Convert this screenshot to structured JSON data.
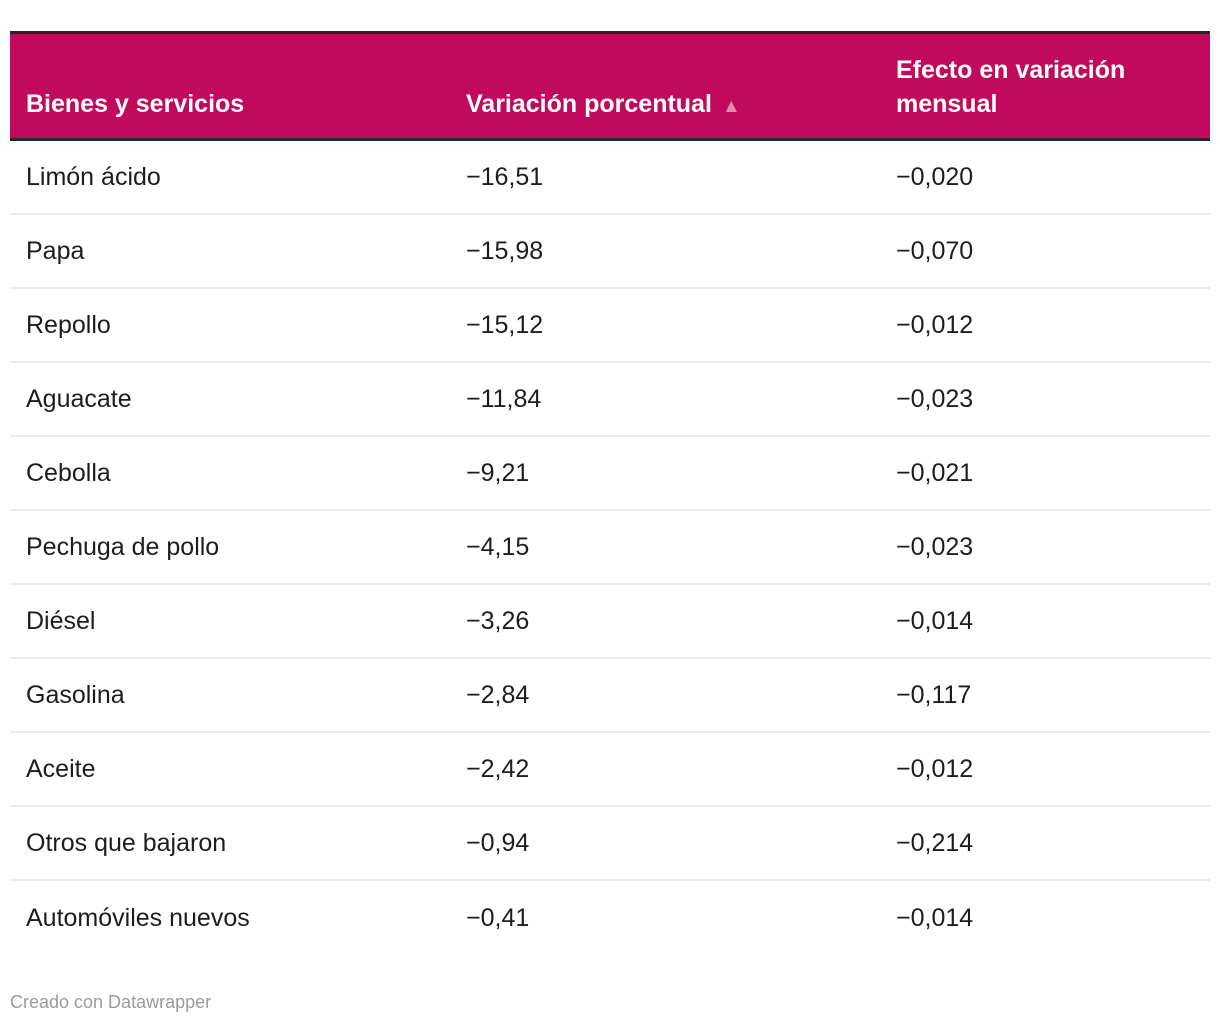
{
  "table": {
    "columns": [
      {
        "label": "Bienes y servicios"
      },
      {
        "label": "Variación porcentual",
        "sort_icon": "▲",
        "sort_direction": "ascending"
      },
      {
        "label": "Efecto en variación mensual"
      }
    ],
    "rows": [
      {
        "name": "Limón ácido",
        "variacion": "−16,51",
        "efecto": "−0,020"
      },
      {
        "name": "Papa",
        "variacion": "−15,98",
        "efecto": "−0,070"
      },
      {
        "name": "Repollo",
        "variacion": "−15,12",
        "efecto": "−0,012"
      },
      {
        "name": "Aguacate",
        "variacion": "−11,84",
        "efecto": "−0,023"
      },
      {
        "name": "Cebolla",
        "variacion": "−9,21",
        "efecto": "−0,021"
      },
      {
        "name": "Pechuga de pollo",
        "variacion": "−4,15",
        "efecto": "−0,023"
      },
      {
        "name": "Diésel",
        "variacion": "−3,26",
        "efecto": "−0,014"
      },
      {
        "name": "Gasolina",
        "variacion": "−2,84",
        "efecto": "−0,117"
      },
      {
        "name": "Aceite",
        "variacion": "−2,42",
        "efecto": "−0,012"
      },
      {
        "name": "Otros que bajaron",
        "variacion": "−0,94",
        "efecto": "−0,214"
      },
      {
        "name": "Automóviles nuevos",
        "variacion": "−0,41",
        "efecto": "−0,014"
      }
    ]
  },
  "footer": {
    "attribution": "Creado con Datawrapper"
  },
  "colors": {
    "header_bg": "#C10A5E",
    "header_border": "#262626",
    "header_text": "#FFFFFF",
    "sort_arrow": "#DC8AAE",
    "row_text": "#1D1D1D",
    "row_divider": "#EBEBEB",
    "footer_text": "#9B9B9B"
  },
  "chart_data": {
    "type": "table",
    "title": "",
    "columns": [
      "Bienes y servicios",
      "Variación porcentual",
      "Efecto en variación mensual"
    ],
    "rows": [
      [
        "Limón ácido",
        -16.51,
        -0.02
      ],
      [
        "Papa",
        -15.98,
        -0.07
      ],
      [
        "Repollo",
        -15.12,
        -0.012
      ],
      [
        "Aguacate",
        -11.84,
        -0.023
      ],
      [
        "Cebolla",
        -9.21,
        -0.021
      ],
      [
        "Pechuga de pollo",
        -4.15,
        -0.023
      ],
      [
        "Diésel",
        -3.26,
        -0.014
      ],
      [
        "Gasolina",
        -2.84,
        -0.117
      ],
      [
        "Aceite",
        -2.42,
        -0.012
      ],
      [
        "Otros que bajaron",
        -0.94,
        -0.214
      ],
      [
        "Automóviles nuevos",
        -0.41,
        -0.014
      ]
    ],
    "sort": {
      "column": "Variación porcentual",
      "direction": "ascending"
    },
    "decimal_separator": ",",
    "attribution": "Creado con Datawrapper"
  }
}
